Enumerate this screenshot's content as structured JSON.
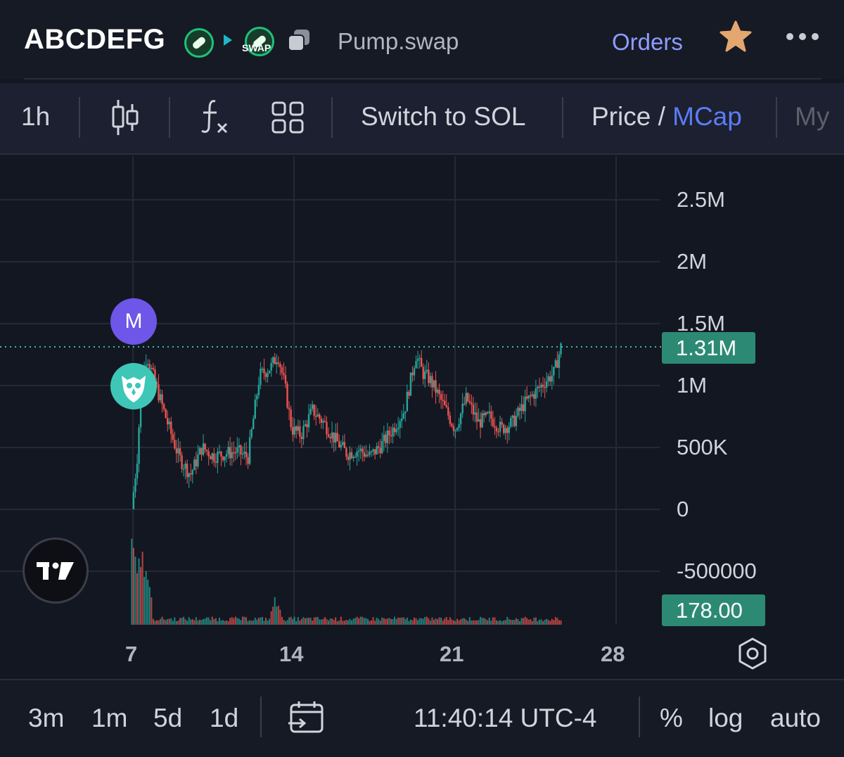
{
  "header": {
    "token_name": "ABCDEFG",
    "swap_badge": "SWAP",
    "dex": "Pump.swap",
    "orders_label": "Orders",
    "icons": [
      "pill-icon",
      "play-icon",
      "swap-icon",
      "copy-icon",
      "star-icon",
      "more-icon"
    ]
  },
  "toolbar": {
    "interval": "1h",
    "switch_label": "Switch to SOL",
    "price_label": "Price /",
    "mcap_label": "MCap",
    "my_label": "My",
    "icons": [
      "candlestick-icon",
      "indicators-icon",
      "layout-icon"
    ]
  },
  "chart": {
    "last_value_tag": "1.31M",
    "volume_tag": "178.00",
    "marker_label": "M",
    "accent_up": "#26a69a",
    "accent_down": "#ef5350"
  },
  "chart_data": {
    "type": "candlestick",
    "y_ticks": [
      "2.5M",
      "2M",
      "1.5M",
      "1M",
      "500K",
      "0",
      "-500000"
    ],
    "x_ticks": [
      "7",
      "14",
      "21",
      "28"
    ],
    "ylim": [
      -500000,
      2500000
    ],
    "last_value": 1310000,
    "volume_last": 178.0,
    "grid": true,
    "series": [
      {
        "x": [
          6.95,
          7.2,
          7.35,
          7.6,
          8.0,
          8.5,
          9.0,
          9.5,
          10.0,
          10.5,
          11.0,
          11.5,
          12.0,
          12.5,
          13.0,
          13.3,
          13.6,
          13.9,
          14.3,
          14.8,
          15.3,
          15.8,
          16.3,
          16.8,
          17.3,
          17.8,
          18.3,
          18.8,
          19.3,
          19.6,
          19.9,
          20.2,
          20.6,
          21.0,
          21.5,
          22.0,
          22.5,
          23.0,
          23.5,
          24.0,
          24.5,
          25.0,
          25.3,
          25.6
        ],
        "y": [
          0,
          450000,
          1000000,
          1250000,
          1000000,
          700000,
          420000,
          280000,
          500000,
          430000,
          450000,
          470000,
          420000,
          1080000,
          1150000,
          1250000,
          1000000,
          650000,
          600000,
          800000,
          700000,
          560000,
          450000,
          480000,
          430000,
          520000,
          650000,
          800000,
          1250000,
          1100000,
          1050000,
          950000,
          800000,
          650000,
          900000,
          700000,
          750000,
          650000,
          700000,
          850000,
          950000,
          1050000,
          1100000,
          1310000
        ]
      }
    ],
    "volume": {
      "x": [
        7.0,
        7.3,
        7.6,
        13.2,
        19.3
      ],
      "values": [
        1,
        0.9,
        0.5,
        0.28,
        0.07
      ]
    }
  },
  "bottombar": {
    "ranges": [
      "3m",
      "1m",
      "5d",
      "1d"
    ],
    "time": "11:40:14 UTC-4",
    "percent": "%",
    "log": "log",
    "auto": "auto"
  }
}
